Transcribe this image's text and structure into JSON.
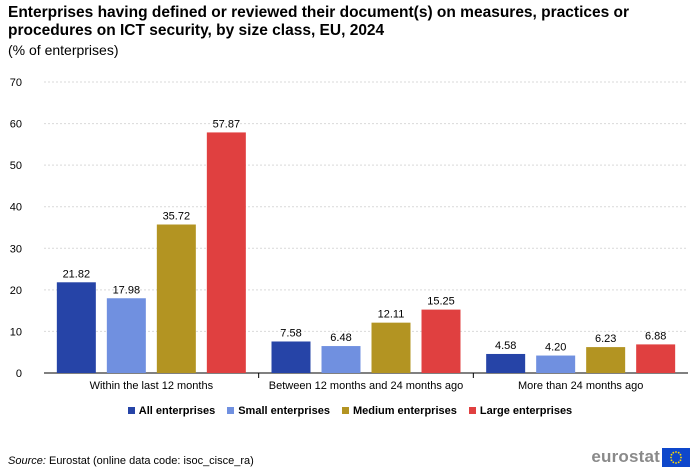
{
  "title": "Enterprises having defined or reviewed their document(s) on measures, practices or procedures on ICT security, by size class, EU, 2024",
  "subtitle": "(% of enterprises)",
  "source_label": "Source:",
  "source_text": " Eurostat (online data code: isoc_cisce_ra)",
  "logo_text": "eurostat",
  "colors": {
    "all": "#2644a7",
    "small": "#7090e0",
    "medium": "#b39422",
    "large": "#e04040",
    "grid": "#d9d9d9",
    "axis": "#000000"
  },
  "chart_data": {
    "type": "bar",
    "categories": [
      "Within the last 12 months",
      "Between 12 months and 24 months ago",
      "More than 24 months ago"
    ],
    "series": [
      {
        "name": "All enterprises",
        "values": [
          21.82,
          7.58,
          4.58
        ]
      },
      {
        "name": "Small enterprises",
        "values": [
          17.98,
          6.48,
          4.2
        ]
      },
      {
        "name": "Medium enterprises",
        "values": [
          35.72,
          12.11,
          6.23
        ]
      },
      {
        "name": "Large enterprises",
        "values": [
          57.87,
          15.25,
          6.88
        ]
      }
    ],
    "ylim": [
      0,
      70
    ],
    "yticks": [
      0,
      10,
      20,
      30,
      40,
      50,
      60,
      70
    ],
    "grid": true,
    "legend_position": "bottom"
  }
}
